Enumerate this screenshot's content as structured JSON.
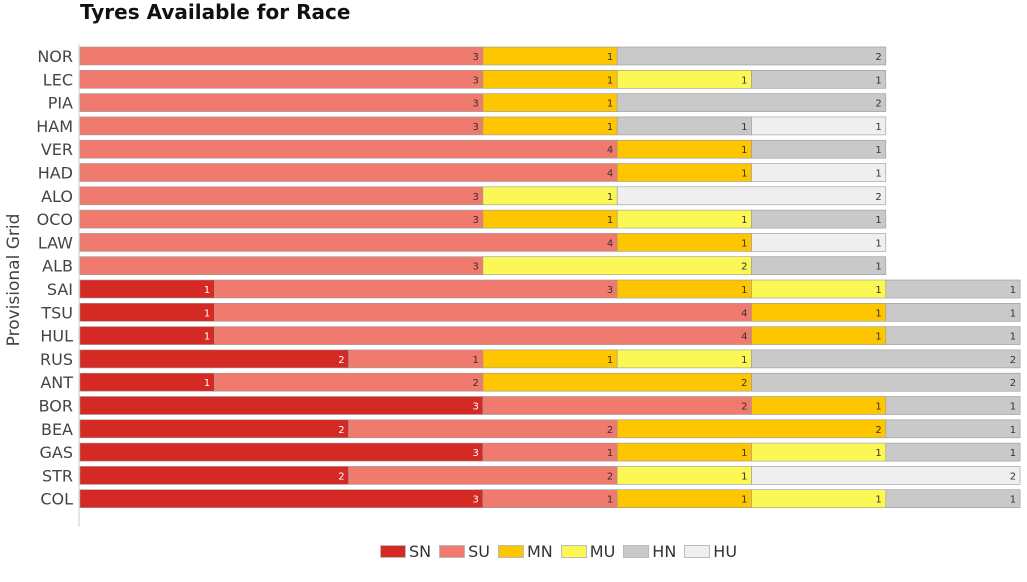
{
  "chart_data": {
    "type": "bar",
    "orientation": "horizontal",
    "stacked": true,
    "title": "Tyres Available for Race",
    "ylabel": "Provisional Grid",
    "categories": [
      "NOR",
      "LEC",
      "PIA",
      "HAM",
      "VER",
      "HAD",
      "ALO",
      "OCO",
      "LAW",
      "ALB",
      "SAI",
      "TSU",
      "HUL",
      "RUS",
      "ANT",
      "BOR",
      "BEA",
      "GAS",
      "STR",
      "COL"
    ],
    "series": [
      {
        "name": "SN",
        "color": "#d42a23",
        "values": [
          0,
          0,
          0,
          0,
          0,
          0,
          0,
          0,
          0,
          0,
          1,
          1,
          1,
          2,
          1,
          3,
          2,
          3,
          2,
          3
        ]
      },
      {
        "name": "SU",
        "color": "#f07a6e",
        "values": [
          3,
          3,
          3,
          3,
          4,
          4,
          3,
          3,
          4,
          3,
          3,
          4,
          4,
          1,
          2,
          2,
          2,
          1,
          2,
          1
        ]
      },
      {
        "name": "MN",
        "color": "#fdc600",
        "values": [
          1,
          1,
          1,
          1,
          1,
          1,
          0,
          1,
          1,
          0,
          1,
          1,
          1,
          1,
          2,
          1,
          2,
          1,
          0,
          1
        ]
      },
      {
        "name": "MU",
        "color": "#fbf855",
        "values": [
          0,
          1,
          0,
          0,
          0,
          0,
          1,
          1,
          0,
          2,
          1,
          0,
          0,
          1,
          0,
          0,
          0,
          1,
          1,
          1
        ]
      },
      {
        "name": "HN",
        "color": "#c9c9c9",
        "values": [
          2,
          1,
          2,
          1,
          1,
          0,
          0,
          1,
          0,
          1,
          1,
          1,
          1,
          2,
          2,
          1,
          1,
          1,
          0,
          1
        ]
      },
      {
        "name": "HU",
        "color": "#efefef",
        "values": [
          0,
          0,
          0,
          1,
          0,
          1,
          2,
          0,
          1,
          0,
          0,
          0,
          0,
          0,
          0,
          0,
          0,
          0,
          2,
          0
        ]
      }
    ],
    "xlim": [
      0,
      7
    ],
    "grid": false,
    "legend_position": "bottom"
  }
}
